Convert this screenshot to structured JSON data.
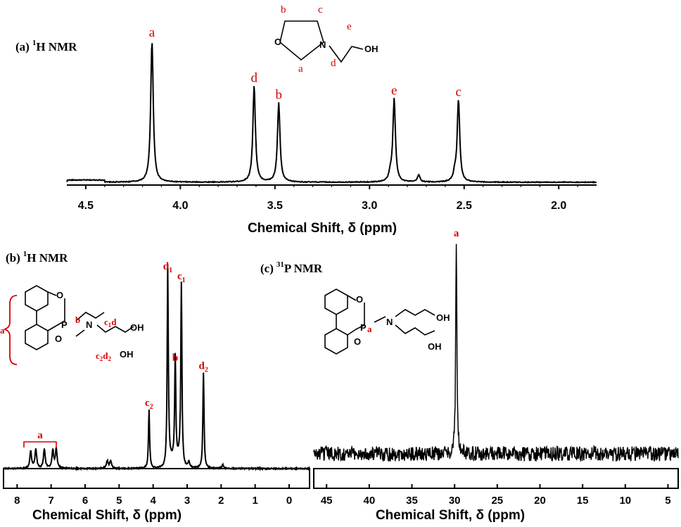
{
  "chart_data": [
    {
      "type": "line",
      "panel_title": "(a)",
      "title_sup": "1",
      "title_rest": "H NMR",
      "xlabel": "Chemical Shift, δ (ppm)",
      "xlim": [
        4.6,
        1.8
      ],
      "xticks": [
        "4.5",
        "4.0",
        "3.5",
        "3.0",
        "2.5",
        "2.0"
      ],
      "xtick_values": [
        4.5,
        4.0,
        3.5,
        3.0,
        2.5,
        2.0
      ],
      "peaks": [
        {
          "label": "a",
          "x": 4.15,
          "intensity": 1.0
        },
        {
          "label": "d",
          "x": 3.61,
          "intensity": 0.68
        },
        {
          "label": "b",
          "x": 3.48,
          "intensity": 0.56
        },
        {
          "label": "e",
          "x": 2.87,
          "intensity": 0.59
        },
        {
          "label": "c",
          "x": 2.53,
          "intensity": 0.58
        }
      ],
      "minor_peaks": [
        {
          "x": 2.74,
          "intensity": 0.05
        },
        {
          "x": 2.89,
          "intensity": 0.05
        },
        {
          "x": 2.55,
          "intensity": 0.05
        }
      ],
      "structure_labels": {
        "b": "b",
        "c": "c",
        "e": "e",
        "a": "a",
        "d": "d",
        "o": "O",
        "n": "N",
        "oh": "OH"
      }
    },
    {
      "type": "line",
      "panel_title": "(b)",
      "title_sup": "1",
      "title_rest": "H NMR",
      "xlabel": "Chemical Shift, δ (ppm)",
      "xlim": [
        8.4,
        -0.6
      ],
      "xticks": [
        "8",
        "7",
        "6",
        "5",
        "4",
        "3",
        "2",
        "1",
        "0"
      ],
      "xtick_values": [
        8,
        7,
        6,
        5,
        4,
        3,
        2,
        1,
        0
      ],
      "peaks": [
        {
          "label": "d",
          "sub": "1",
          "x": 3.57,
          "intensity": 1.0
        },
        {
          "label": "c",
          "sub": "1",
          "x": 3.17,
          "intensity": 0.95
        },
        {
          "label": "b",
          "sub": "",
          "x": 3.35,
          "intensity": 0.53
        },
        {
          "label": "d",
          "sub": "2",
          "x": 2.52,
          "intensity": 0.49
        },
        {
          "label": "c",
          "sub": "2",
          "x": 4.12,
          "intensity": 0.3
        }
      ],
      "aromatic_label": "a",
      "structure_labels": {
        "o": "O",
        "p": "P",
        "n": "N",
        "b": "b",
        "c1": "c",
        "c1sub": "1",
        "d1": "d",
        "d1sub": "1",
        "c2": "c",
        "c2sub": "2",
        "d2": "d",
        "d2sub": "2",
        "oh": "OH",
        "a": "a"
      }
    },
    {
      "type": "line",
      "panel_title": "(c)",
      "title_sup": "31",
      "title_rest": "P NMR",
      "xlabel": "Chemical Shift, δ (ppm)",
      "xlim": [
        46.5,
        3.8
      ],
      "xticks": [
        "45",
        "40",
        "35",
        "30",
        "25",
        "20",
        "15",
        "10",
        "5"
      ],
      "xtick_values": [
        45,
        40,
        35,
        30,
        25,
        20,
        15,
        10,
        5
      ],
      "peaks": [
        {
          "label": "a",
          "x": 29.8,
          "intensity": 1.0
        }
      ],
      "structure_labels": {
        "o": "O",
        "p": "P",
        "a": "a",
        "n": "N",
        "oh": "OH"
      }
    }
  ]
}
